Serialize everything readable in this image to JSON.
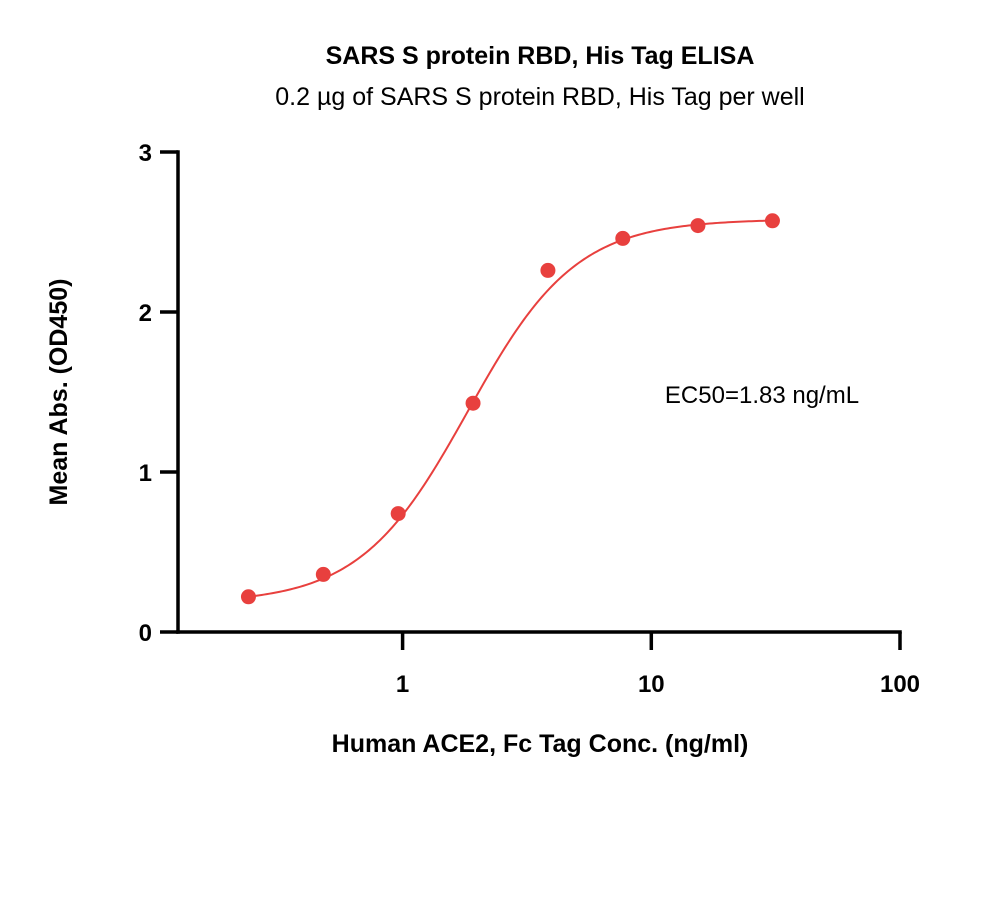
{
  "chart_data": {
    "type": "scatter",
    "title": "SARS S protein RBD, His Tag ELISA",
    "subtitle": "0.2 µg of SARS S protein RBD, His Tag per well",
    "xlabel": "Human ACE2, Fc Tag Conc. (ng/ml)",
    "ylabel": "Mean Abs. (OD450)",
    "x_scale": "log",
    "xlim": [
      0.125,
      100
    ],
    "ylim": [
      0,
      3
    ],
    "x_ticks": [
      1,
      10,
      100
    ],
    "x_tick_labels": [
      "1",
      "10",
      "100"
    ],
    "y_ticks": [
      0,
      1,
      2,
      3
    ],
    "y_tick_labels": [
      "0",
      "1",
      "2",
      "3"
    ],
    "grid": false,
    "color": "#e8403e",
    "fit": "sigmoidal 4PL",
    "fit_params": {
      "bottom": 0.18,
      "top": 2.58,
      "ec50": 1.83,
      "hill": 2.0
    },
    "series": [
      {
        "x": [
          0.24,
          0.48,
          0.96,
          1.92,
          3.84,
          7.68,
          15.4,
          30.7
        ],
        "y": [
          0.22,
          0.36,
          0.74,
          1.43,
          2.26,
          2.46,
          2.54,
          2.57
        ]
      }
    ],
    "annotations": [
      {
        "text": "EC50=1.83 ng/mL"
      }
    ]
  }
}
